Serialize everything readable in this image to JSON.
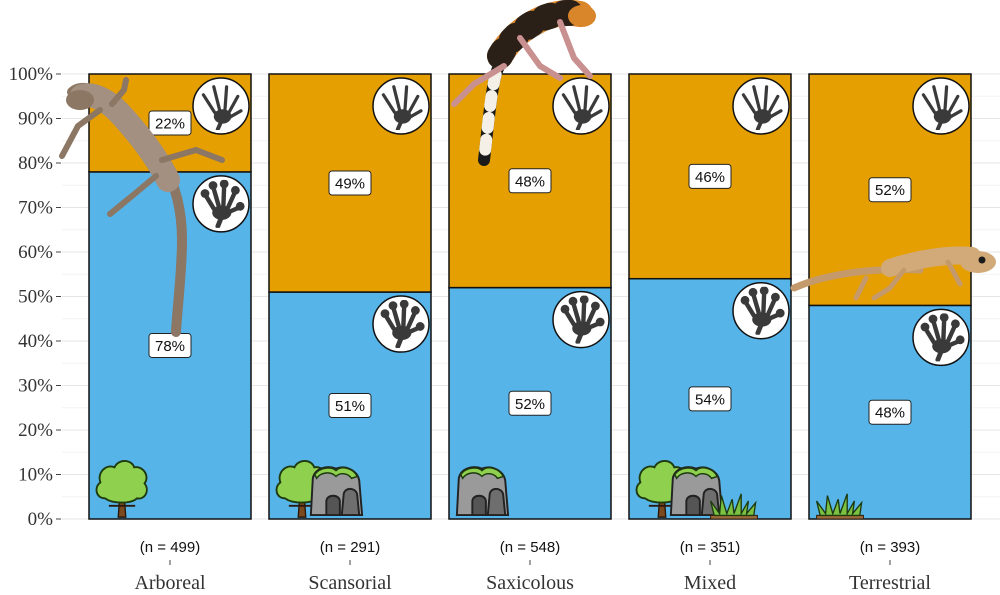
{
  "chart_data": {
    "type": "bar",
    "stacked": true,
    "normalized": true,
    "categories": [
      "Arboreal",
      "Scansorial",
      "Saxicolous",
      "Mixed",
      "Terrestrial"
    ],
    "sample_sizes": [
      "(n = 499)",
      "(n = 291)",
      "(n = 548)",
      "(n = 351)",
      "(n = 393)"
    ],
    "series": [
      {
        "key": "padded",
        "values": [
          78,
          51,
          52,
          54,
          48
        ],
        "labels": [
          "78%",
          "51%",
          "52%",
          "54%",
          "48%"
        ],
        "color": "#56B4E9",
        "icon": "adhesive-toepad-foot-icon"
      },
      {
        "key": "padless",
        "values": [
          22,
          49,
          48,
          46,
          52
        ],
        "labels": [
          "22%",
          "49%",
          "48%",
          "46%",
          "52%"
        ],
        "color": "#E69F00",
        "icon": "padless-clawed-foot-icon"
      }
    ],
    "ylim": [
      0,
      100
    ],
    "yticks": [
      "0%",
      "10%",
      "20%",
      "30%",
      "40%",
      "50%",
      "60%",
      "70%",
      "80%",
      "90%",
      "100%"
    ],
    "grid": true,
    "legend": "none",
    "habitat_icons": [
      [
        "tree-icon"
      ],
      [
        "tree-icon",
        "rock-icon"
      ],
      [
        "rock-icon"
      ],
      [
        "tree-icon",
        "rock-icon",
        "grass-icon"
      ],
      [
        "grass-icon"
      ]
    ],
    "gecko_images": [
      "arboreal-gecko-illustration",
      "saxicolous-banded-gecko-illustration",
      "terrestrial-gecko-illustration"
    ]
  }
}
